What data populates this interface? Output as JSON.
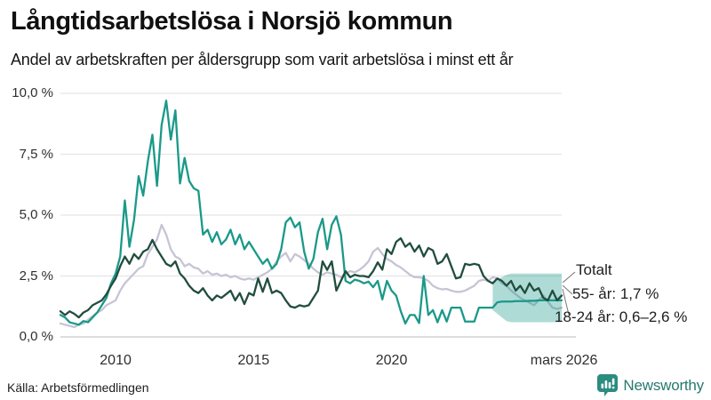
{
  "header": {
    "title": "Långtidsarbetslösa i Norsjö kommun",
    "subtitle": "Andel av arbetskraften per åldersgrupp som varit arbetslösa i minst ett år"
  },
  "annotations": {
    "total_label": "Totalt",
    "senior_label": "55- år: 1,7 %",
    "youth_label": "18-24 år: 0,6–2,6 %"
  },
  "footer": {
    "source": "Källa: Arbetsförmedlingen",
    "brand": "Newsworthy"
  },
  "colors": {
    "youth_line": "#1a9989",
    "senior_line": "#214d3f",
    "total_line": "#c7c4d5",
    "forecast_band": "rgba(26,153,137,0.35)",
    "grid": "#e5e5e5",
    "zero_line": "#d2d2d2",
    "leader_line": "#777777",
    "brand_teal": "#2b8c80"
  },
  "chart_data": {
    "type": "line",
    "title": "Långtidsarbetslösa i Norsjö kommun",
    "subtitle": "Andel av arbetskraften per åldersgrupp som varit arbetslösa i minst ett år",
    "unit": "%",
    "x_start": 2008,
    "x_step": 0.1666667,
    "x_ticks": [
      {
        "label": "2010",
        "year": 2010
      },
      {
        "label": "2015",
        "year": 2015
      },
      {
        "label": "2020",
        "year": 2020
      },
      {
        "label": "mars 2026",
        "year": 2026.25
      }
    ],
    "y_ticks": [
      0,
      2.5,
      5,
      7.5,
      10
    ],
    "y_tick_labels": [
      "0,0 %",
      "2,5 %",
      "5,0 %",
      "7,5 %",
      "10,0 %"
    ],
    "ylim": [
      0,
      10
    ],
    "grid": true,
    "series": [
      {
        "key": "totalt",
        "name": "Totalt",
        "color": "#c7c4d5",
        "values": [
          0.55,
          0.5,
          0.45,
          0.4,
          0.5,
          0.55,
          0.7,
          0.85,
          1.0,
          1.1,
          1.3,
          1.4,
          1.5,
          1.9,
          2.2,
          2.4,
          2.6,
          2.8,
          2.9,
          3.4,
          3.7,
          4.0,
          4.6,
          4.2,
          3.6,
          3.3,
          3.2,
          2.9,
          3.0,
          2.85,
          2.8,
          2.6,
          2.7,
          2.55,
          2.6,
          2.5,
          2.55,
          2.45,
          2.5,
          2.4,
          2.35,
          2.4,
          2.35,
          2.45,
          2.55,
          2.65,
          2.8,
          3.1,
          3.3,
          3.45,
          3.1,
          3.4,
          3.3,
          3.15,
          3.0,
          2.8,
          2.65,
          2.55,
          2.65,
          2.6,
          2.55,
          2.45,
          2.6,
          2.7,
          2.65,
          2.75,
          2.9,
          3.1,
          3.5,
          3.65,
          3.4,
          3.2,
          3.1,
          2.95,
          2.85,
          2.7,
          2.55,
          2.45,
          2.45,
          2.4,
          2.3,
          2.1,
          2.0,
          1.95,
          1.97,
          1.9,
          1.85,
          1.85,
          1.9,
          2.0,
          2.1,
          2.3,
          2.35,
          2.3,
          2.45,
          2.4,
          2.2,
          2.1,
          1.9,
          1.75,
          1.6,
          1.5,
          1.4,
          1.3,
          1.5,
          1.7,
          1.45,
          1.2,
          1.15,
          1.2
        ]
      },
      {
        "key": "youth",
        "name": "18-24 år",
        "color": "#1a9989",
        "values": [
          0.9,
          0.8,
          0.6,
          0.55,
          0.5,
          0.65,
          0.6,
          0.8,
          1.0,
          1.3,
          1.6,
          2.2,
          2.6,
          3.3,
          5.6,
          3.7,
          4.8,
          6.6,
          5.8,
          7.2,
          8.3,
          6.2,
          8.7,
          9.7,
          8.1,
          9.3,
          6.3,
          7.35,
          6.4,
          6.1,
          6.0,
          4.2,
          4.4,
          3.9,
          4.3,
          3.8,
          4.0,
          4.4,
          3.8,
          4.2,
          3.6,
          3.9,
          3.6,
          3.3,
          3.0,
          3.2,
          2.8,
          3.0,
          3.6,
          4.7,
          4.9,
          4.5,
          4.7,
          3.5,
          2.8,
          3.2,
          4.3,
          4.85,
          3.6,
          4.6,
          4.95,
          4.2,
          2.3,
          2.2,
          2.35,
          2.3,
          2.2,
          2.27,
          2.04,
          2.3,
          1.54,
          2.3,
          1.9,
          1.7,
          1.06,
          0.55,
          0.9,
          0.9,
          0.57,
          2.5,
          0.9,
          1.1,
          0.6,
          1.1,
          0.63,
          1.2,
          1.2,
          1.2,
          0.63,
          0.63,
          0.63,
          1.2,
          1.2,
          1.2,
          1.2,
          1.42,
          1.45,
          1.45,
          1.45,
          1.47,
          1.47,
          1.47,
          1.48,
          1.48,
          1.5,
          1.5,
          1.5,
          1.5,
          1.5,
          1.5
        ]
      },
      {
        "key": "senior",
        "name": "55- år",
        "color": "#214d3f",
        "values": [
          1.05,
          0.9,
          1.05,
          0.95,
          0.8,
          1.0,
          1.1,
          1.3,
          1.4,
          1.5,
          1.75,
          2.1,
          2.4,
          2.9,
          3.3,
          3.0,
          3.4,
          3.2,
          3.5,
          3.6,
          3.98,
          3.6,
          3.3,
          3.0,
          2.9,
          3.1,
          2.6,
          2.4,
          2.1,
          1.9,
          1.8,
          2.0,
          1.7,
          1.5,
          1.7,
          1.6,
          1.75,
          1.9,
          1.5,
          1.8,
          1.35,
          1.8,
          1.7,
          2.4,
          1.85,
          2.4,
          1.8,
          1.9,
          1.8,
          1.5,
          1.25,
          1.2,
          1.3,
          1.25,
          1.3,
          1.6,
          1.9,
          3.1,
          2.75,
          3.1,
          1.9,
          2.3,
          2.7,
          2.45,
          2.55,
          2.5,
          2.5,
          2.45,
          2.7,
          3.06,
          2.76,
          3.6,
          3.4,
          3.9,
          4.05,
          3.7,
          3.85,
          3.5,
          3.75,
          3.3,
          3.65,
          3.55,
          3.0,
          3.1,
          3.4,
          2.9,
          2.4,
          2.45,
          3.0,
          2.95,
          3.0,
          2.95,
          2.5,
          2.3,
          2.2,
          2.4,
          2.3,
          2.1,
          2.3,
          1.9,
          2.1,
          1.8,
          2.2,
          1.9,
          2.0,
          1.6,
          1.5,
          1.9,
          1.5,
          1.7
        ]
      }
    ],
    "forecast_band": {
      "series": "18-24 år",
      "start_index": 94,
      "low": [
        1.1,
        0.95,
        0.8,
        0.65,
        0.6,
        0.6,
        0.6,
        0.6,
        0.6,
        0.6,
        0.6,
        0.6,
        0.6,
        0.6,
        0.6,
        0.6
      ],
      "high": [
        2.2,
        2.35,
        2.45,
        2.55,
        2.6,
        2.6,
        2.6,
        2.6,
        2.6,
        2.6,
        2.6,
        2.6,
        2.6,
        2.6,
        2.6,
        2.6
      ],
      "end_label_range": "0,6–2,6 %"
    },
    "end_labels": {
      "totalt": "Totalt",
      "senior": "55- år: 1,7 %",
      "youth": "18-24 år: 0,6–2,6 %"
    },
    "legend_position": "end-of-line"
  }
}
